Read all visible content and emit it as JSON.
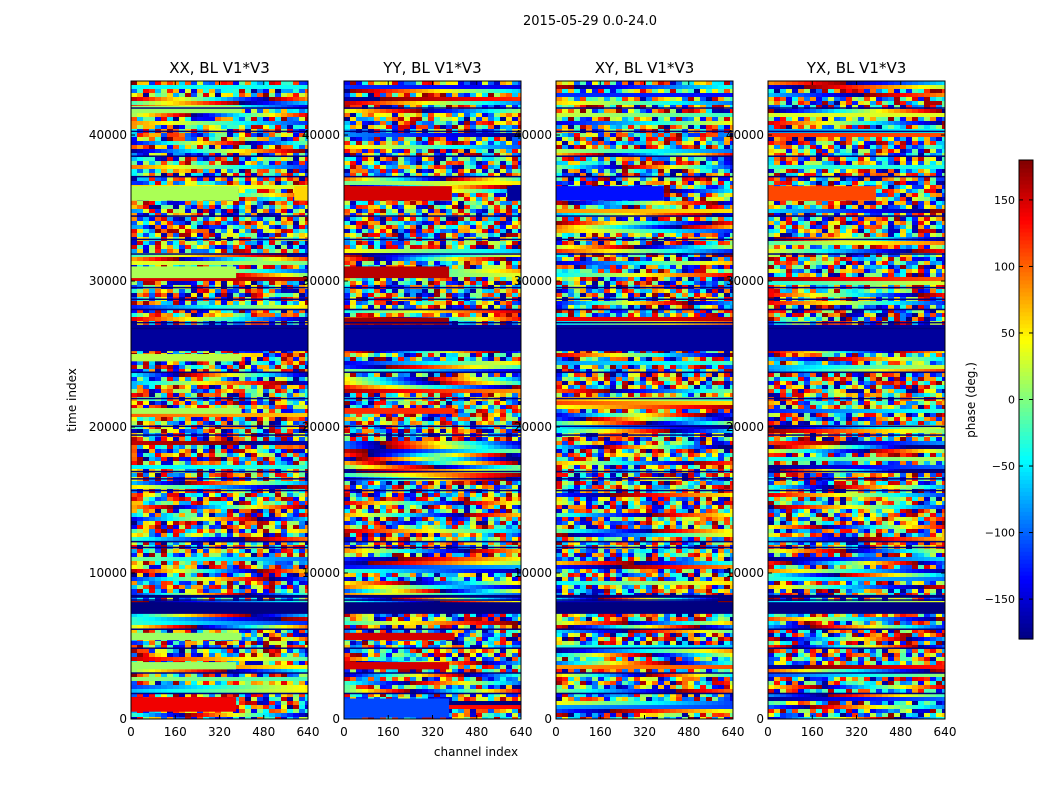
{
  "figure": {
    "suptitle": "2015-05-29 0.0-24.0"
  },
  "chart_data": {
    "type": "heatmap",
    "xlabel": "channel index",
    "ylabel": "time index",
    "colorbar_label": "phase (deg.)",
    "colormap": "jet",
    "color_range": [
      -180,
      180
    ],
    "colorbar_ticks": [
      -150,
      -100,
      -50,
      0,
      50,
      100,
      150
    ],
    "xlim": [
      0,
      640
    ],
    "ylim": [
      0,
      43700
    ],
    "xticks": [
      0,
      160,
      320,
      480,
      640
    ],
    "yticks": [
      0,
      10000,
      20000,
      30000,
      40000
    ],
    "panels": [
      {
        "title": "XX, BL V1*V3",
        "bands": [
          {
            "y": [
              500,
              1500
            ],
            "x": [
              0,
              380
            ],
            "phase": 140
          },
          {
            "y": [
              3400,
              3900
            ],
            "x": [
              0,
              380
            ],
            "phase": 10
          },
          {
            "y": [
              5400,
              5900
            ],
            "x": [
              0,
              400
            ],
            "phase": 10
          },
          {
            "y": [
              7200,
              8000
            ],
            "x": [
              0,
              640
            ],
            "phase": -180
          },
          {
            "y": [
              8300,
              8500
            ],
            "x": [
              0,
              640
            ],
            "phase": -180
          },
          {
            "y": [
              20900,
              21300
            ],
            "x": [
              0,
              400
            ],
            "phase": 15
          },
          {
            "y": [
              24500,
              25000
            ],
            "x": [
              0,
              400
            ],
            "phase": 20
          },
          {
            "y": [
              25200,
              27000
            ],
            "x": [
              0,
              640
            ],
            "phase": -170
          },
          {
            "y": [
              30200,
              31000
            ],
            "x": [
              0,
              380
            ],
            "phase": 15
          },
          {
            "y": [
              35500,
              36500
            ],
            "x": [
              0,
              390
            ],
            "phase": 15
          },
          {
            "y": [
              35500,
              36500
            ],
            "x": [
              590,
              640
            ],
            "phase": 60
          },
          {
            "y": [
              41500,
              42000
            ],
            "x": [
              0,
              400
            ],
            "phase": 10
          }
        ]
      },
      {
        "title": "YY, BL V1*V3",
        "bands": [
          {
            "y": [
              100,
              1400
            ],
            "x": [
              0,
              380
            ],
            "phase": -110
          },
          {
            "y": [
              3400,
              3900
            ],
            "x": [
              0,
              380
            ],
            "phase": 150
          },
          {
            "y": [
              5400,
              5900
            ],
            "x": [
              0,
              400
            ],
            "phase": 150
          },
          {
            "y": [
              7200,
              8000
            ],
            "x": [
              0,
              640
            ],
            "phase": -180
          },
          {
            "y": [
              8300,
              8500
            ],
            "x": [
              0,
              640
            ],
            "phase": -180
          },
          {
            "y": [
              20900,
              21300
            ],
            "x": [
              0,
              400
            ],
            "phase": 120
          },
          {
            "y": [
              25200,
              27000
            ],
            "x": [
              0,
              640
            ],
            "phase": -170
          },
          {
            "y": [
              27000,
              27500
            ],
            "x": [
              0,
              380
            ],
            "phase": 170
          },
          {
            "y": [
              30200,
              31000
            ],
            "x": [
              0,
              380
            ],
            "phase": 160
          },
          {
            "y": [
              35500,
              36500
            ],
            "x": [
              0,
              390
            ],
            "phase": 150
          },
          {
            "y": [
              35500,
              36500
            ],
            "x": [
              590,
              640
            ],
            "phase": -170
          }
        ]
      },
      {
        "title": "XY, BL V1*V3",
        "bands": [
          {
            "y": [
              7200,
              8000
            ],
            "x": [
              0,
              640
            ],
            "phase": -180
          },
          {
            "y": [
              8300,
              8500
            ],
            "x": [
              0,
              640
            ],
            "phase": -180
          },
          {
            "y": [
              25200,
              27000
            ],
            "x": [
              0,
              640
            ],
            "phase": -170
          },
          {
            "y": [
              35500,
              36500
            ],
            "x": [
              0,
              390
            ],
            "phase": -130
          }
        ]
      },
      {
        "title": "YX, BL V1*V3",
        "bands": [
          {
            "y": [
              7200,
              8000
            ],
            "x": [
              0,
              640
            ],
            "phase": -180
          },
          {
            "y": [
              8300,
              8500
            ],
            "x": [
              0,
              640
            ],
            "phase": -180
          },
          {
            "y": [
              25200,
              27000
            ],
            "x": [
              0,
              640
            ],
            "phase": -170
          },
          {
            "y": [
              35500,
              36500
            ],
            "x": [
              0,
              390
            ],
            "phase": 110
          }
        ]
      }
    ],
    "gaps_y": [
      1800,
      3200,
      4900,
      6200,
      8200,
      11800,
      12200,
      15700,
      16500,
      17000,
      19500,
      20100,
      22000,
      23800,
      26800,
      27200,
      28100,
      28800,
      29600,
      31900,
      32900,
      34500,
      37200,
      38600,
      40300,
      41900
    ]
  }
}
